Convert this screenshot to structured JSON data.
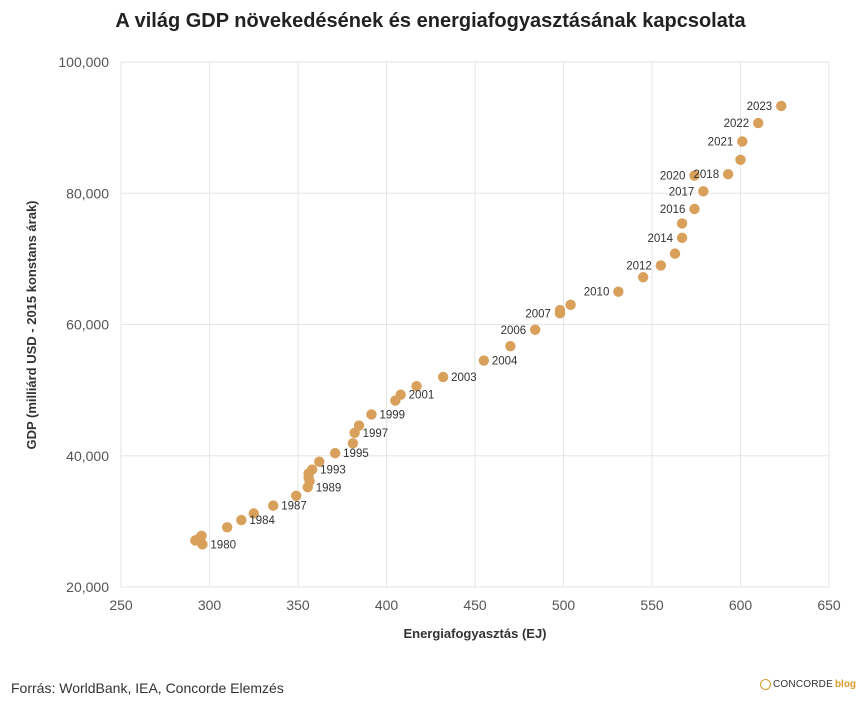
{
  "chart_data": {
    "type": "scatter",
    "title": "A világ GDP növekedésének és energiafogyasztásának kapcsolata",
    "xlabel": "Energiafogyasztás (EJ)",
    "ylabel": "GDP (milliárd USD - 2015 konstans árak)",
    "xlim": [
      250,
      650
    ],
    "ylim": [
      20000,
      100000
    ],
    "xticks": [
      250,
      300,
      350,
      400,
      450,
      500,
      550,
      600,
      650
    ],
    "xtick_labels": [
      "250",
      "300",
      "350",
      "400",
      "450",
      "500",
      "550",
      "600",
      "650"
    ],
    "yticks": [
      20000,
      40000,
      60000,
      80000,
      100000
    ],
    "ytick_labels": [
      "20,000",
      "40,000",
      "60,000",
      "80,000",
      "100,000"
    ],
    "grid": true,
    "marker_color": "#d9a05b",
    "points": [
      {
        "label": "1980",
        "x": 296,
        "y": 26500
      },
      {
        "label": "",
        "x": 292,
        "y": 27100
      },
      {
        "label": "",
        "x": 293,
        "y": 27200
      },
      {
        "label": "",
        "x": 295.5,
        "y": 27800
      },
      {
        "label": "",
        "x": 310,
        "y": 29100
      },
      {
        "label": "1984",
        "x": 318,
        "y": 30200
      },
      {
        "label": "",
        "x": 325,
        "y": 31200
      },
      {
        "label": "1987",
        "x": 336,
        "y": 32400
      },
      {
        "label": "",
        "x": 349,
        "y": 33900
      },
      {
        "label": "1989",
        "x": 355.5,
        "y": 35200
      },
      {
        "label": "",
        "x": 356.5,
        "y": 36100
      },
      {
        "label": "",
        "x": 356,
        "y": 36700
      },
      {
        "label": "",
        "x": 356,
        "y": 37300
      },
      {
        "label": "1993",
        "x": 358,
        "y": 37900
      },
      {
        "label": "",
        "x": 362,
        "y": 39100
      },
      {
        "label": "1995",
        "x": 371,
        "y": 40400
      },
      {
        "label": "",
        "x": 381,
        "y": 41900
      },
      {
        "label": "1997",
        "x": 382,
        "y": 43500
      },
      {
        "label": "",
        "x": 384.5,
        "y": 44600
      },
      {
        "label": "1999",
        "x": 391.5,
        "y": 46300
      },
      {
        "label": "",
        "x": 405,
        "y": 48400
      },
      {
        "label": "2001",
        "x": 408,
        "y": 49300
      },
      {
        "label": "",
        "x": 417,
        "y": 50600
      },
      {
        "label": "2003",
        "x": 432,
        "y": 52000
      },
      {
        "label": "2004",
        "x": 455,
        "y": 54500
      },
      {
        "label": "",
        "x": 470,
        "y": 56700
      },
      {
        "label": "2006",
        "x": 484,
        "y": 59200
      },
      {
        "label": "2007",
        "x": 498,
        "y": 61700
      },
      {
        "label": "",
        "x": 498,
        "y": 62200
      },
      {
        "label": "",
        "x": 504,
        "y": 63000
      },
      {
        "label": "2010",
        "x": 531,
        "y": 65000
      },
      {
        "label": "",
        "x": 545,
        "y": 67200
      },
      {
        "label": "2012",
        "x": 555,
        "y": 69000
      },
      {
        "label": "",
        "x": 563,
        "y": 70800
      },
      {
        "label": "2014",
        "x": 567,
        "y": 73200
      },
      {
        "label": "",
        "x": 567,
        "y": 75400
      },
      {
        "label": "2016",
        "x": 574,
        "y": 77600
      },
      {
        "label": "2017",
        "x": 579,
        "y": 80300
      },
      {
        "label": "2018",
        "x": 593,
        "y": 82900
      },
      {
        "label": "2020",
        "x": 574,
        "y": 82700
      },
      {
        "label": "",
        "x": 600,
        "y": 85100
      },
      {
        "label": "2021",
        "x": 601,
        "y": 87900
      },
      {
        "label": "2022",
        "x": 610,
        "y": 90700
      },
      {
        "label": "2023",
        "x": 623,
        "y": 93300
      }
    ]
  },
  "footer": {
    "source": "Forrás: WorldBank, IEA, Concorde Elemzés",
    "logo_text": "CONCORDE",
    "logo_sub": "blog"
  }
}
